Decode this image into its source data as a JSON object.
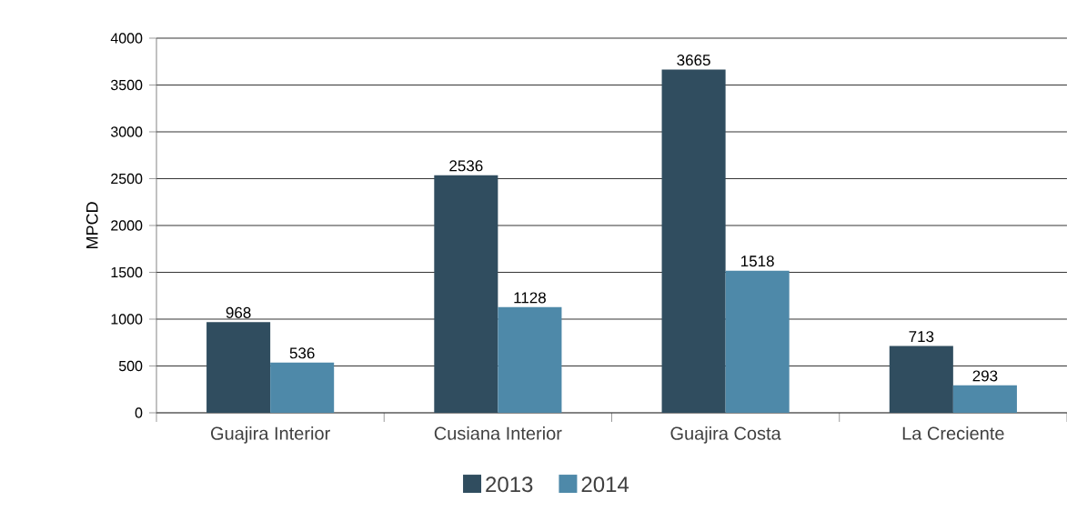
{
  "chart_data": {
    "type": "bar",
    "ylabel": "MPCD",
    "categories": [
      "Guajira Interior",
      "Cusiana Interior",
      "Guajira Costa",
      "La Creciente"
    ],
    "series": [
      {
        "name": "2013",
        "color": "#304d5f",
        "values": [
          968,
          2536,
          3665,
          713
        ]
      },
      {
        "name": "2014",
        "color": "#4e89a9",
        "values": [
          536,
          1128,
          1518,
          293
        ]
      }
    ],
    "ylim": [
      0,
      4000
    ],
    "yticks": [
      0,
      500,
      1000,
      1500,
      2000,
      2500,
      3000,
      3500,
      4000
    ],
    "grid": "y",
    "legend": "bottom",
    "data_labels": true
  }
}
